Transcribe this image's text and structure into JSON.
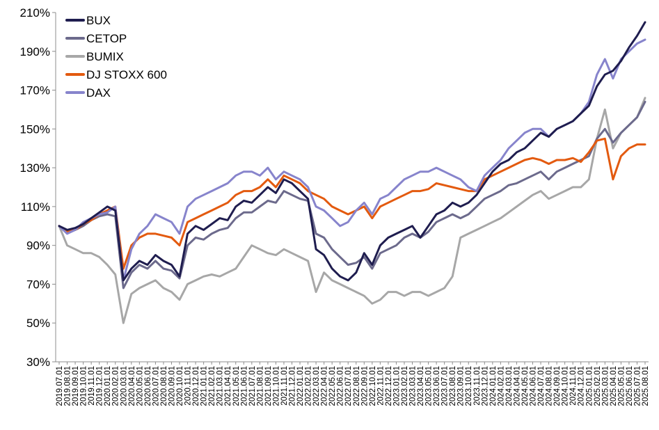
{
  "chart_data": {
    "type": "line",
    "title": "",
    "xlabel": "",
    "ylabel": "",
    "ylim": [
      30,
      210
    ],
    "y_ticks": [
      "30%",
      "50%",
      "70%",
      "90%",
      "110%",
      "130%",
      "150%",
      "170%",
      "190%",
      "210%"
    ],
    "y_tick_values": [
      30,
      50,
      70,
      90,
      110,
      130,
      150,
      170,
      190,
      210
    ],
    "grid": false,
    "legend_position": "top-left",
    "x": [
      "2019.07.01",
      "2019.08.01",
      "2019.09.01",
      "2019.10.01",
      "2019.11.01",
      "2019.12.01",
      "2020.01.01",
      "2020.02.01",
      "2020.03.01",
      "2020.04.01",
      "2020.05.01",
      "2020.06.01",
      "2020.07.01",
      "2020.08.01",
      "2020.09.01",
      "2020.10.01",
      "2020.11.01",
      "2020.12.01",
      "2021.01.01",
      "2021.02.01",
      "2021.03.01",
      "2021.04.01",
      "2021.05.01",
      "2021.06.01",
      "2021.07.01",
      "2021.08.01",
      "2021.09.01",
      "2021.10.01",
      "2021.11.01",
      "2021.12.01",
      "2022.01.01",
      "2022.02.01",
      "2022.03.01",
      "2022.04.01",
      "2022.05.01",
      "2022.06.01",
      "2022.07.01",
      "2022.08.01",
      "2022.09.01",
      "2022.10.01",
      "2022.11.01",
      "2022.12.01",
      "2023.01.01",
      "2023.02.01",
      "2023.03.01",
      "2023.04.01",
      "2023.05.01",
      "2023.06.01",
      "2023.07.01",
      "2023.08.01",
      "2023.09.01",
      "2023.10.01",
      "2023.11.01",
      "2023.12.01",
      "2024.01.01",
      "2024.02.01",
      "2024.03.01",
      "2024.04.01",
      "2024.05.01",
      "2024.06.01",
      "2024.07.01",
      "2024.08.01",
      "2024.09.01",
      "2024.10.01",
      "2024.11.01",
      "2024.12.01",
      "2025.01.01",
      "2025.02.01",
      "2025.03.01",
      "2025.04.01",
      "2025.05.01",
      "2025.06.01",
      "2025.07.01",
      "2025.08.01"
    ],
    "series": [
      {
        "name": "BUX",
        "color": "#1f1d4f",
        "values": [
          100,
          98,
          99,
          101,
          104,
          107,
          110,
          108,
          72,
          78,
          82,
          80,
          85,
          82,
          80,
          74,
          96,
          100,
          98,
          101,
          104,
          103,
          110,
          113,
          112,
          116,
          120,
          117,
          124,
          122,
          118,
          114,
          88,
          85,
          78,
          74,
          72,
          76,
          86,
          80,
          90,
          94,
          96,
          98,
          100,
          94,
          100,
          106,
          108,
          112,
          110,
          112,
          116,
          122,
          128,
          132,
          134,
          138,
          140,
          144,
          148,
          146,
          150,
          152,
          154,
          158,
          162,
          172,
          178,
          180,
          185,
          192,
          198,
          205
        ]
      },
      {
        "name": "CETOP",
        "color": "#6c6a8c",
        "values": [
          100,
          97,
          98,
          100,
          103,
          105,
          106,
          105,
          68,
          76,
          80,
          78,
          82,
          78,
          77,
          73,
          90,
          94,
          93,
          96,
          98,
          99,
          104,
          107,
          107,
          110,
          113,
          112,
          118,
          116,
          114,
          113,
          96,
          94,
          88,
          84,
          80,
          81,
          84,
          78,
          86,
          88,
          90,
          94,
          96,
          94,
          97,
          102,
          104,
          106,
          104,
          106,
          110,
          114,
          116,
          118,
          121,
          122,
          124,
          126,
          128,
          124,
          128,
          130,
          132,
          134,
          136,
          145,
          150,
          143,
          148,
          152,
          156,
          164
        ]
      },
      {
        "name": "BUMIX",
        "color": "#a7a7a7",
        "values": [
          100,
          90,
          88,
          86,
          86,
          84,
          80,
          75,
          50,
          65,
          68,
          70,
          72,
          68,
          66,
          62,
          70,
          72,
          74,
          75,
          74,
          76,
          78,
          84,
          90,
          88,
          86,
          85,
          88,
          86,
          84,
          82,
          66,
          76,
          72,
          70,
          68,
          66,
          64,
          60,
          62,
          66,
          66,
          64,
          66,
          66,
          64,
          66,
          68,
          74,
          94,
          96,
          98,
          100,
          102,
          104,
          107,
          110,
          113,
          116,
          118,
          114,
          116,
          118,
          120,
          120,
          124,
          145,
          160,
          140,
          148,
          152,
          156,
          166
        ]
      },
      {
        "name": "DJ STOXX 600",
        "color": "#e35a0f",
        "values": [
          100,
          97,
          98,
          101,
          103,
          106,
          108,
          110,
          78,
          90,
          94,
          96,
          96,
          95,
          94,
          90,
          102,
          104,
          106,
          108,
          110,
          112,
          116,
          118,
          118,
          120,
          124,
          120,
          126,
          124,
          122,
          118,
          116,
          114,
          110,
          108,
          106,
          108,
          110,
          104,
          110,
          112,
          114,
          116,
          118,
          118,
          119,
          122,
          121,
          120,
          119,
          118,
          118,
          124,
          126,
          128,
          130,
          132,
          134,
          135,
          134,
          132,
          134,
          134,
          135,
          133,
          138,
          144,
          145,
          124,
          136,
          140,
          142,
          142
        ]
      },
      {
        "name": "DAX",
        "color": "#8784cc",
        "values": [
          100,
          96,
          98,
          102,
          104,
          106,
          107,
          110,
          72,
          88,
          96,
          100,
          106,
          104,
          102,
          96,
          110,
          114,
          116,
          118,
          120,
          122,
          126,
          128,
          128,
          126,
          130,
          124,
          128,
          126,
          124,
          120,
          110,
          108,
          104,
          100,
          102,
          108,
          112,
          106,
          114,
          116,
          120,
          124,
          126,
          128,
          128,
          130,
          128,
          126,
          124,
          120,
          118,
          126,
          130,
          134,
          140,
          144,
          148,
          150,
          150,
          146,
          150,
          152,
          154,
          158,
          164,
          178,
          186,
          176,
          186,
          190,
          194,
          196
        ]
      }
    ]
  }
}
